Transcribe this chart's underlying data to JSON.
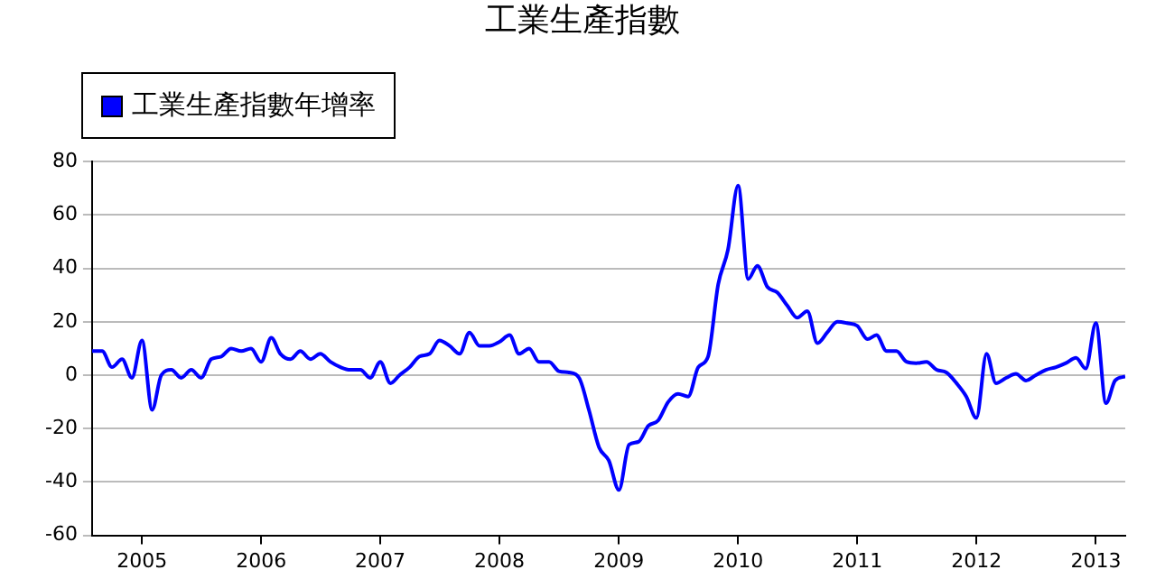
{
  "chart_data": {
    "type": "line",
    "title": "工業生產指數",
    "legend": "top left",
    "grid": "y",
    "marker": "none",
    "line_style": "solid",
    "x": [
      "2004-08",
      "2004-09",
      "2004-10",
      "2004-11",
      "2004-12",
      "2005-01",
      "2005-02",
      "2005-03",
      "2005-04",
      "2005-05",
      "2005-06",
      "2005-07",
      "2005-08",
      "2005-09",
      "2005-10",
      "2005-11",
      "2005-12",
      "2006-01",
      "2006-02",
      "2006-03",
      "2006-04",
      "2006-05",
      "2006-06",
      "2006-07",
      "2006-08",
      "2006-09",
      "2006-10",
      "2006-11",
      "2006-12",
      "2007-01",
      "2007-02",
      "2007-03",
      "2007-04",
      "2007-05",
      "2007-06",
      "2007-07",
      "2007-08",
      "2007-09",
      "2007-10",
      "2007-11",
      "2007-12",
      "2008-01",
      "2008-02",
      "2008-03",
      "2008-04",
      "2008-05",
      "2008-06",
      "2008-07",
      "2008-08",
      "2008-09",
      "2008-10",
      "2008-11",
      "2008-12",
      "2009-01",
      "2009-02",
      "2009-03",
      "2009-04",
      "2009-05",
      "2009-06",
      "2009-07",
      "2009-08",
      "2009-09",
      "2009-10",
      "2009-11",
      "2009-12",
      "2010-01",
      "2010-02",
      "2010-03",
      "2010-04",
      "2010-05",
      "2010-06",
      "2010-07",
      "2010-08",
      "2010-09",
      "2010-10",
      "2010-11",
      "2010-12",
      "2011-01",
      "2011-02",
      "2011-03",
      "2011-04",
      "2011-05",
      "2011-06",
      "2011-07",
      "2011-08",
      "2011-09",
      "2011-10",
      "2011-11",
      "2011-12",
      "2012-01",
      "2012-02",
      "2012-03",
      "2012-04",
      "2012-05",
      "2012-06",
      "2012-07",
      "2012-08",
      "2012-09",
      "2012-10",
      "2012-11",
      "2012-12",
      "2013-01",
      "2013-02",
      "2013-03",
      "2013-04"
    ],
    "series": [
      {
        "name": "工業生產指數年增率",
        "color": "#0000ff",
        "values": [
          9,
          9,
          3,
          6,
          -1,
          13,
          -13,
          0,
          2,
          -1,
          2,
          -1,
          6,
          7,
          10,
          9,
          10,
          5,
          14,
          8,
          6,
          9,
          6,
          8,
          5,
          3,
          2,
          2,
          -1,
          5,
          -3,
          0,
          3,
          7,
          8,
          13,
          11,
          8,
          16,
          11,
          11,
          12.5,
          15,
          8,
          10,
          5,
          5,
          1.5,
          1,
          -1,
          -13,
          -27,
          -32,
          -43,
          -26,
          -25,
          -19,
          -17,
          -10,
          -7,
          -8,
          3,
          7,
          34,
          47,
          71,
          36,
          41,
          33,
          31,
          26,
          21.5,
          24,
          12,
          16,
          20,
          19.5,
          18.5,
          13.5,
          15,
          9,
          9,
          5,
          4.5,
          5,
          2,
          1,
          -3,
          -8,
          -16,
          8,
          -3,
          -1,
          0.5,
          -2,
          0,
          2,
          3,
          4.5,
          6.5,
          2.5,
          19.5,
          -10.5,
          -2,
          -0.5
        ]
      }
    ],
    "xlim": [
      "2004-08",
      "2013-04"
    ],
    "xticks": [
      "2005",
      "2006",
      "2007",
      "2008",
      "2009",
      "2010",
      "2011",
      "2012",
      "2013"
    ],
    "ylim": [
      -60,
      80
    ],
    "yticks": [
      -60,
      -40,
      -20,
      0,
      20,
      40,
      60,
      80
    ]
  }
}
